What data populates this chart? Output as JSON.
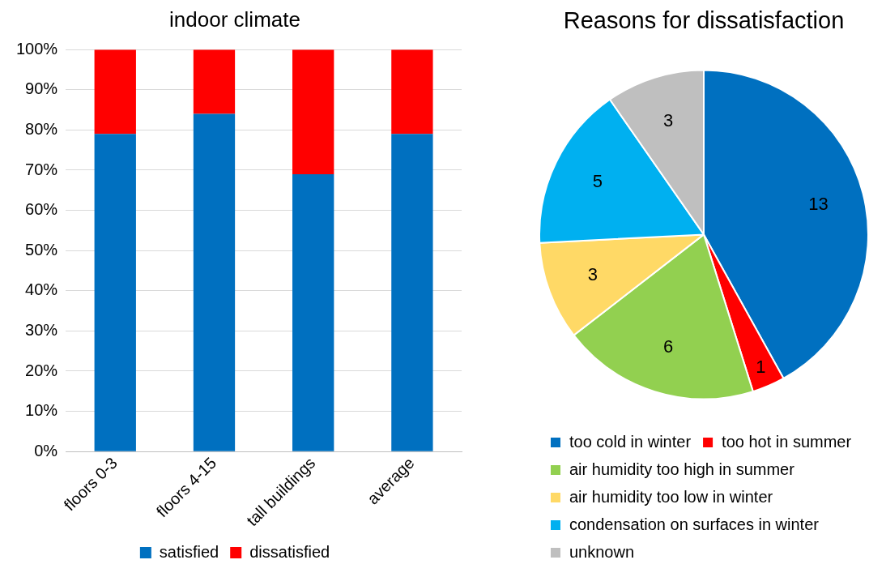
{
  "chart_data": [
    {
      "type": "bar",
      "title": "indoor climate",
      "stacked": true,
      "categories": [
        "floors 0-3",
        "floors 4-15",
        "tall buildings",
        "average"
      ],
      "series": [
        {
          "name": "satisfied",
          "color": "#0070c0",
          "values": [
            79,
            84,
            69,
            79
          ]
        },
        {
          "name": "dissatisfied",
          "color": "#ff0000",
          "values": [
            21,
            16,
            31,
            21
          ]
        }
      ],
      "ylim": [
        0,
        100
      ],
      "yticks": [
        {
          "value": 0,
          "label": "0%"
        },
        {
          "value": 10,
          "label": "10%"
        },
        {
          "value": 20,
          "label": "20%"
        },
        {
          "value": 30,
          "label": "30%"
        },
        {
          "value": 40,
          "label": "40%"
        },
        {
          "value": 50,
          "label": "50%"
        },
        {
          "value": 60,
          "label": "60%"
        },
        {
          "value": 70,
          "label": "70%"
        },
        {
          "value": 80,
          "label": "80%"
        },
        {
          "value": 90,
          "label": "90%"
        },
        {
          "value": 100,
          "label": "100%"
        }
      ],
      "grid": "y",
      "legend": "bottom"
    },
    {
      "type": "pie",
      "title": "Reasons for dissatisfaction",
      "categories": [
        "too cold in winter",
        "too hot in summer",
        "air humidity too high in summer",
        "air humidity too low in winter",
        "condensation on surfaces in winter",
        "unknown"
      ],
      "values": [
        13,
        1,
        6,
        3,
        5,
        3
      ],
      "colors": [
        "#0070c0",
        "#ff0000",
        "#92d050",
        "#ffd966",
        "#00b0f0",
        "#bfbfbf"
      ],
      "data_labels": true,
      "legend": "bottom"
    }
  ]
}
